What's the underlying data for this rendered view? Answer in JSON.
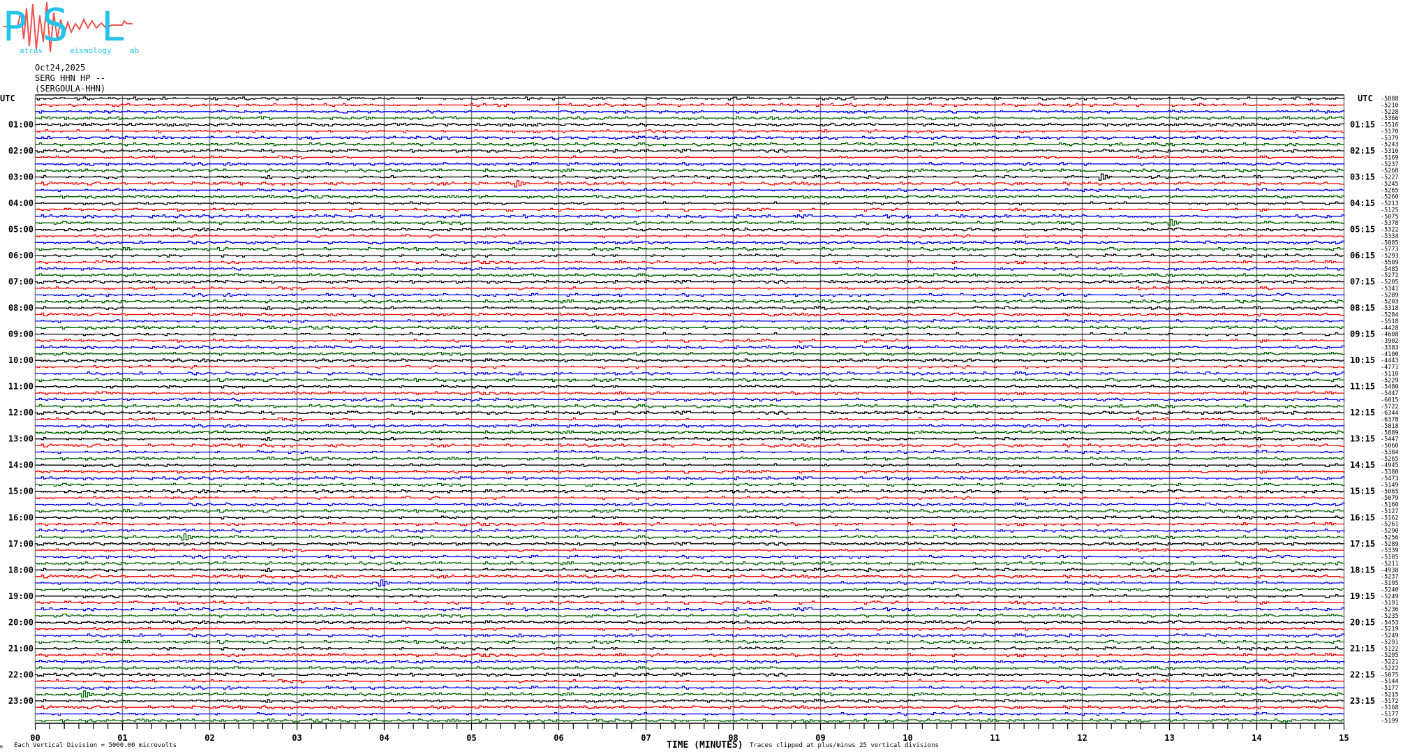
{
  "logo": {
    "letters": "PSL",
    "words": [
      "atras",
      "eismology",
      "ab"
    ],
    "color_letters": "#22c4e8",
    "color_wave": "#f05050"
  },
  "header": {
    "date": "Oct24,2025",
    "station": "SERG HHN HP --",
    "site": "(SERGOULA-HHN)"
  },
  "chart_data": {
    "type": "line",
    "subtype": "helicorder",
    "xlabel": "TIME (MINUTES)",
    "xlim": [
      0,
      15
    ],
    "x_ticks": [
      "00",
      "01",
      "02",
      "03",
      "04",
      "05",
      "06",
      "07",
      "08",
      "09",
      "10",
      "11",
      "12",
      "13",
      "14",
      "15"
    ],
    "minor_tick_seconds": 10,
    "grid": "vertical every minute",
    "minutes_per_line": 15,
    "trace_colors": [
      "#000000",
      "#ff0000",
      "#0000ff",
      "#006400"
    ],
    "grid_color": "#808080",
    "left_labels": [
      "UTC",
      "01:00",
      "02:00",
      "03:00",
      "04:00",
      "05:00",
      "06:00",
      "07:00",
      "08:00",
      "09:00",
      "10:00",
      "11:00",
      "12:00",
      "13:00",
      "14:00",
      "15:00",
      "16:00",
      "17:00",
      "18:00",
      "19:00",
      "20:00",
      "21:00",
      "22:00",
      "23:00"
    ],
    "right_labels": [
      "UTC",
      "01:15",
      "02:15",
      "03:15",
      "04:15",
      "05:15",
      "06:15",
      "07:15",
      "08:15",
      "09:15",
      "10:15",
      "11:15",
      "12:15",
      "13:15",
      "14:15",
      "15:15",
      "16:15",
      "17:15",
      "18:15",
      "19:15",
      "20:15",
      "21:15",
      "22:15",
      "23:15"
    ],
    "offsets": [
      "-5888",
      "-5210",
      "-5228",
      "-5366",
      "-5516",
      "-5170",
      "-5379",
      "-5243",
      "-5310",
      "-5169",
      "-5237",
      "-5268",
      "-5227",
      "-5245",
      "-5265",
      "-5260",
      "-5213",
      "-5125",
      "-5075",
      "-5378",
      "-5322",
      "-5334",
      "-5885",
      "-5773",
      "-5293",
      "-5509",
      "-5485",
      "-5272",
      "-5205",
      "-5341",
      "-5289",
      "-5203",
      "-5318",
      "-5284",
      "-5518",
      "-4428",
      "-4608",
      "-3902",
      "-3383",
      "-4100",
      "-4443",
      "-4771",
      "-5110",
      "-5229",
      "-5480",
      "-5447",
      "-6015",
      "-5722",
      "-6344",
      "-6378",
      "-5818",
      "-5889",
      "-5447",
      "-5060",
      "-5384",
      "-5265",
      "-4945",
      "-5380",
      "-5473",
      "-5149",
      "-5065",
      "-5079",
      "-5160",
      "-5127",
      "-5162",
      "-5261",
      "-5290",
      "-5256",
      "-5289",
      "-5339",
      "-5105",
      "-5211",
      "-4938",
      "-5237",
      "-5195",
      "-5240",
      "-5249",
      "-5191",
      "-5236",
      "-5235",
      "-5453",
      "-5219",
      "-5249",
      "-5291",
      "-5122",
      "-5295",
      "-5221",
      "-5222",
      "-5075",
      "-5144",
      "-5177",
      "-5215",
      "-5172",
      "-5168",
      "-5177",
      "-5199"
    ],
    "events": [
      {
        "trace": 12,
        "minute": 12.2
      },
      {
        "trace": 13,
        "minute": 5.5
      },
      {
        "trace": 19,
        "minute": 13.0
      },
      {
        "trace": 67,
        "minute": 1.7
      },
      {
        "trace": 74,
        "minute": 3.95
      },
      {
        "trace": 91,
        "minute": 0.55
      }
    ],
    "footer_scale": "Each Vertical Division = 5000.00 microvolts",
    "footer_clip": "Traces clipped at plus/minus 25 vertical divisions",
    "footer_mark": "M"
  }
}
